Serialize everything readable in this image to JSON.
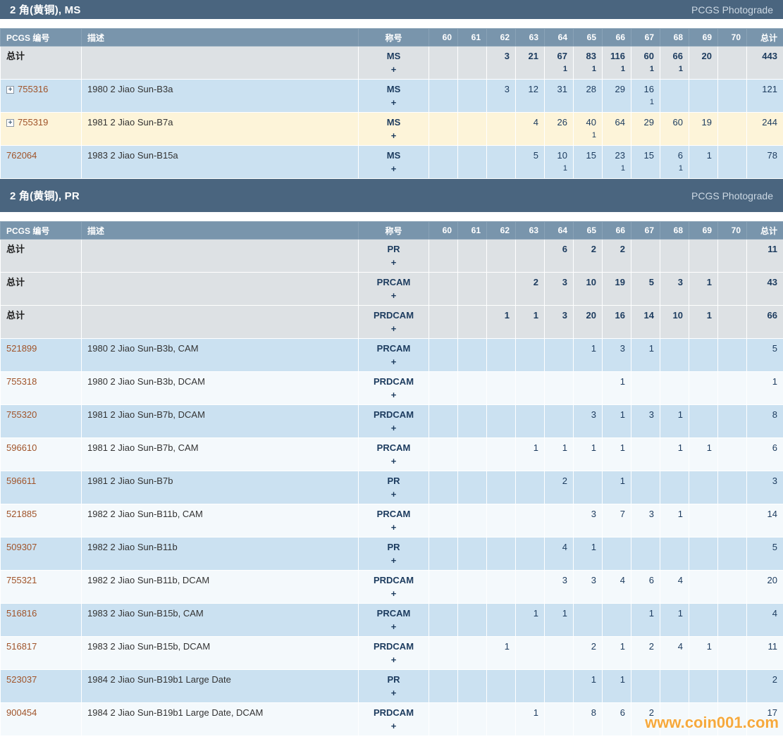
{
  "watermark": "www.coin001.com",
  "table": {
    "col_headers": {
      "pcgs": "PCGS 编号",
      "desc": "描述",
      "designation": "称号",
      "grades": [
        "60",
        "61",
        "62",
        "63",
        "64",
        "65",
        "66",
        "67",
        "68",
        "69",
        "70"
      ],
      "total": "总计"
    },
    "plus": "+"
  },
  "colors": {
    "section_bar": "#4a657f",
    "column_header": "#7995ac",
    "row_gray": "#dde1e4",
    "row_blue": "#cbe1f1",
    "row_white": "#f4f9fc",
    "row_highlight": "#fdf4d9",
    "link": "#a0542a",
    "number_text": "#1c3b5e",
    "watermark": "#f6a93c"
  },
  "sections": [
    {
      "title": "2 角(黄铜), MS",
      "right_label": "PCGS Photograde",
      "rows": [
        {
          "kind": "total",
          "label": "总计",
          "desc": "",
          "designation": "MS",
          "grades": {
            "62": "3",
            "63": "21",
            "64": "67|1",
            "65": "83|1",
            "66": "116|1",
            "67": "60|1",
            "68": "66|1",
            "69": "20"
          },
          "total": "443",
          "bg": "gray"
        },
        {
          "kind": "data",
          "expand": true,
          "pcgs": "755316",
          "desc": "1980 2 Jiao Sun-B3a",
          "designation": "MS",
          "grades": {
            "62": "3",
            "63": "12",
            "64": "31",
            "65": "28",
            "66": "29",
            "67": "16|1"
          },
          "total": "121",
          "bg": "blue"
        },
        {
          "kind": "data",
          "expand": true,
          "pcgs": "755319",
          "desc": "1981 2 Jiao Sun-B7a",
          "designation": "MS",
          "grades": {
            "63": "4",
            "64": "26",
            "65": "40|1",
            "66": "64",
            "67": "29",
            "68": "60",
            "69": "19"
          },
          "total": "244",
          "bg": "yellow"
        },
        {
          "kind": "data",
          "expand": false,
          "pcgs": "762064",
          "desc": "1983 2 Jiao Sun-B15a",
          "designation": "MS",
          "grades": {
            "63": "5",
            "64": "10|1",
            "65": "15",
            "66": "23|1",
            "67": "15",
            "68": "6|1",
            "69": "1"
          },
          "total": "78",
          "bg": "blue"
        }
      ]
    },
    {
      "title": "2 角(黄铜), PR",
      "right_label": "PCGS Photograde",
      "rows": [
        {
          "kind": "total",
          "label": "总计",
          "desc": "",
          "designation": "PR",
          "grades": {
            "64": "6",
            "65": "2",
            "66": "2"
          },
          "total": "11",
          "bg": "gray"
        },
        {
          "kind": "total",
          "label": "总计",
          "desc": "",
          "designation": "PRCAM",
          "grades": {
            "63": "2",
            "64": "3",
            "65": "10",
            "66": "19",
            "67": "5",
            "68": "3",
            "69": "1"
          },
          "total": "43",
          "bg": "gray"
        },
        {
          "kind": "total",
          "label": "总计",
          "desc": "",
          "designation": "PRDCAM",
          "grades": {
            "62": "1",
            "63": "1",
            "64": "3",
            "65": "20",
            "66": "16",
            "67": "14",
            "68": "10",
            "69": "1"
          },
          "total": "66",
          "bg": "gray"
        },
        {
          "kind": "data",
          "expand": false,
          "pcgs": "521899",
          "desc": "1980 2 Jiao Sun-B3b, CAM",
          "designation": "PRCAM",
          "grades": {
            "65": "1",
            "66": "3",
            "67": "1"
          },
          "total": "5",
          "bg": "blue"
        },
        {
          "kind": "data",
          "expand": false,
          "pcgs": "755318",
          "desc": "1980 2 Jiao Sun-B3b, DCAM",
          "designation": "PRDCAM",
          "grades": {
            "66": "1"
          },
          "total": "1",
          "bg": "white"
        },
        {
          "kind": "data",
          "expand": false,
          "pcgs": "755320",
          "desc": "1981 2 Jiao Sun-B7b, DCAM",
          "designation": "PRDCAM",
          "grades": {
            "65": "3",
            "66": "1",
            "67": "3",
            "68": "1"
          },
          "total": "8",
          "bg": "blue"
        },
        {
          "kind": "data",
          "expand": false,
          "pcgs": "596610",
          "desc": "1981 2 Jiao Sun-B7b, CAM",
          "designation": "PRCAM",
          "grades": {
            "63": "1",
            "64": "1",
            "65": "1",
            "66": "1",
            "68": "1",
            "69": "1"
          },
          "total": "6",
          "bg": "white"
        },
        {
          "kind": "data",
          "expand": false,
          "pcgs": "596611",
          "desc": "1981 2 Jiao Sun-B7b",
          "designation": "PR",
          "grades": {
            "64": "2",
            "66": "1"
          },
          "total": "3",
          "bg": "blue"
        },
        {
          "kind": "data",
          "expand": false,
          "pcgs": "521885",
          "desc": "1982 2 Jiao Sun-B11b, CAM",
          "designation": "PRCAM",
          "grades": {
            "65": "3",
            "66": "7",
            "67": "3",
            "68": "1"
          },
          "total": "14",
          "bg": "white"
        },
        {
          "kind": "data",
          "expand": false,
          "pcgs": "509307",
          "desc": "1982 2 Jiao Sun-B11b",
          "designation": "PR",
          "grades": {
            "64": "4",
            "65": "1"
          },
          "total": "5",
          "bg": "blue"
        },
        {
          "kind": "data",
          "expand": false,
          "pcgs": "755321",
          "desc": "1982 2 Jiao Sun-B11b, DCAM",
          "designation": "PRDCAM",
          "grades": {
            "64": "3",
            "65": "3",
            "66": "4",
            "67": "6",
            "68": "4"
          },
          "total": "20",
          "bg": "white"
        },
        {
          "kind": "data",
          "expand": false,
          "pcgs": "516816",
          "desc": "1983 2 Jiao Sun-B15b, CAM",
          "designation": "PRCAM",
          "grades": {
            "63": "1",
            "64": "1",
            "67": "1",
            "68": "1"
          },
          "total": "4",
          "bg": "blue"
        },
        {
          "kind": "data",
          "expand": false,
          "pcgs": "516817",
          "desc": "1983 2 Jiao Sun-B15b, DCAM",
          "designation": "PRDCAM",
          "grades": {
            "62": "1",
            "65": "2",
            "66": "1",
            "67": "2",
            "68": "4",
            "69": "1"
          },
          "total": "11",
          "bg": "white"
        },
        {
          "kind": "data",
          "expand": false,
          "pcgs": "523037",
          "desc": "1984 2 Jiao Sun-B19b1 Large Date",
          "designation": "PR",
          "grades": {
            "65": "1",
            "66": "1"
          },
          "total": "2",
          "bg": "blue"
        },
        {
          "kind": "data",
          "expand": false,
          "pcgs": "900454",
          "desc": "1984 2 Jiao Sun-B19b1 Large Date, DCAM",
          "designation": "PRDCAM",
          "grades": {
            "63": "1",
            "65": "8",
            "66": "6",
            "67": "2"
          },
          "total": "17",
          "bg": "white"
        }
      ]
    }
  ]
}
